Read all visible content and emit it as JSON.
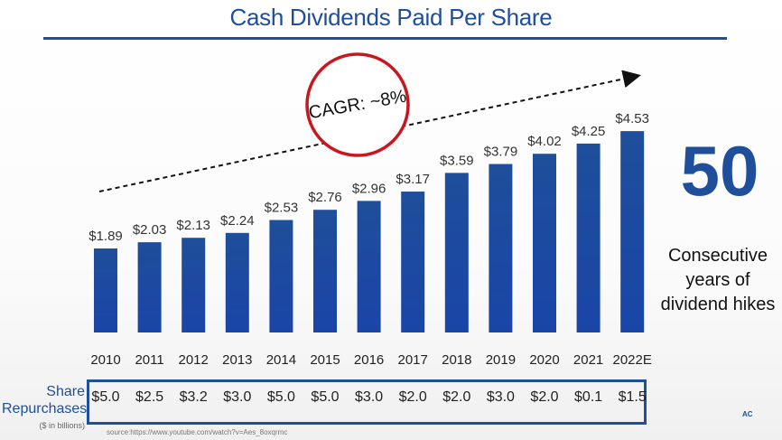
{
  "chart_data": {
    "type": "bar",
    "title": "Cash Dividends Paid Per Share",
    "categories": [
      "2010",
      "2011",
      "2012",
      "2013",
      "2014",
      "2015",
      "2016",
      "2017",
      "2018",
      "2019",
      "2020",
      "2021",
      "2022E"
    ],
    "values": [
      1.89,
      2.03,
      2.13,
      2.24,
      2.53,
      2.76,
      2.96,
      3.17,
      3.59,
      3.79,
      4.02,
      4.25,
      4.53
    ],
    "value_labels": [
      "$1.89",
      "$2.03",
      "$2.13",
      "$2.24",
      "$2.53",
      "$2.76",
      "$2.96",
      "$3.17",
      "$3.59",
      "$3.79",
      "$4.02",
      "$4.25",
      "$4.53"
    ],
    "annotation": "CAGR: ~8%",
    "bar_color": "#1f4e9a"
  },
  "side": {
    "big_number": "50",
    "line1": "Consecutive",
    "line2": "years of",
    "line3": "dividend hikes"
  },
  "repurchases": {
    "label_line1": "Share",
    "label_line2": "Repurchases",
    "unit": "($ in billions)",
    "values": [
      "$5.0",
      "$2.5",
      "$3.2",
      "$3.0",
      "$5.0",
      "$5.0",
      "$3.0",
      "$2.0",
      "$2.0",
      "$3.0",
      "$2.0",
      "$0.1",
      "$1.5"
    ]
  },
  "source": "source:https://www.youtube.com/watch?v=Aes_8oxqrmc",
  "logo": "AC"
}
